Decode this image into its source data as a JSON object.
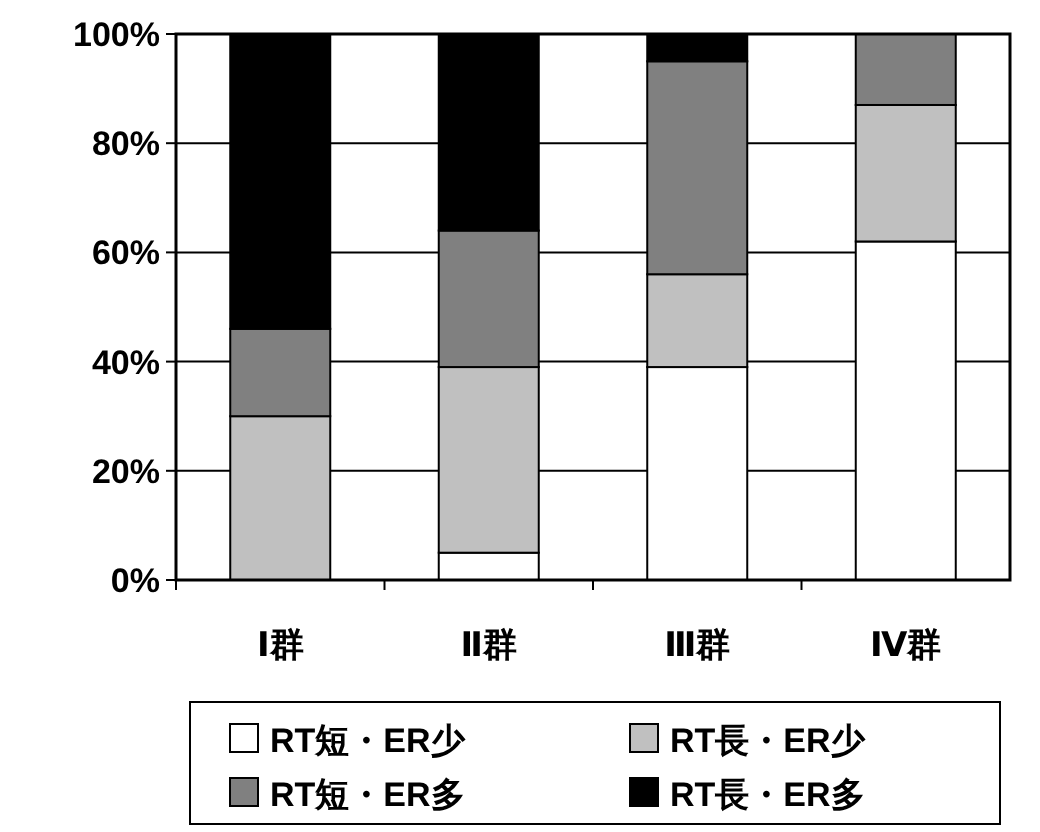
{
  "chart_data": {
    "type": "bar",
    "stacked": true,
    "categories": [
      "Ⅰ群",
      "Ⅱ群",
      "Ⅲ群",
      "Ⅳ群"
    ],
    "series": [
      {
        "name": "RT短・ER少",
        "color": "#ffffff",
        "values": [
          0,
          5,
          39,
          62
        ]
      },
      {
        "name": "RT長・ER少",
        "color": "#c0c0c0",
        "values": [
          30,
          34,
          17,
          25
        ]
      },
      {
        "name": "RT短・ER多",
        "color": "#808080",
        "values": [
          16,
          25,
          39,
          13
        ]
      },
      {
        "name": "RT長・ER多",
        "color": "#000000",
        "values": [
          54,
          36,
          5,
          0
        ]
      }
    ],
    "ylim": [
      0,
      100
    ],
    "yticks": [
      {
        "value": 0,
        "label": "0%"
      },
      {
        "value": 20,
        "label": "20%"
      },
      {
        "value": 40,
        "label": "40%"
      },
      {
        "value": 60,
        "label": "60%"
      },
      {
        "value": 80,
        "label": "80%"
      },
      {
        "value": 100,
        "label": "100%"
      }
    ],
    "grid": "y",
    "legend": "bottom"
  }
}
